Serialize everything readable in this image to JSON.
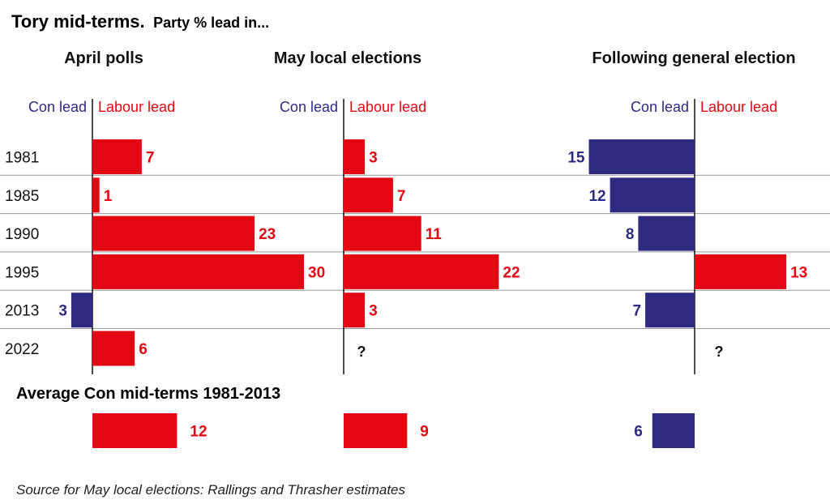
{
  "colors": {
    "labour": "#e30613",
    "con": "#2e2a80",
    "text": "#111111",
    "rule": "#999999"
  },
  "header": {
    "title": "Tory mid-terms.",
    "subtitle": "Party % lead in..."
  },
  "avg_title": "Average Con mid-terms 1981-2013",
  "source": "Source for May local elections: Rallings and Thrasher estimates",
  "chart_data": {
    "type": "bar",
    "orientation": "horizontal",
    "title": "Tory mid-terms. Party % lead in...",
    "categories": [
      "1981",
      "1985",
      "1990",
      "1995",
      "2013",
      "2022"
    ],
    "sign_convention": "positive = Labour lead, negative = Con lead",
    "panels": [
      {
        "name": "April polls",
        "left_label": "Con lead",
        "right_label": "Labour lead",
        "values": [
          7,
          1,
          23,
          30,
          -3,
          6
        ],
        "labels": [
          "7",
          "1",
          "23",
          "30",
          "3",
          "6"
        ],
        "average": 12,
        "average_label": "12"
      },
      {
        "name": "May local elections",
        "left_label": "Con lead",
        "right_label": "Labour lead",
        "values": [
          3,
          7,
          11,
          22,
          3,
          null
        ],
        "labels": [
          "3",
          "7",
          "11",
          "22",
          "3",
          "?"
        ],
        "average": 9,
        "average_label": "9"
      },
      {
        "name": "Following general election",
        "left_label": "Con lead",
        "right_label": "Labour lead",
        "values": [
          -15,
          -12,
          -8,
          13,
          -7,
          null
        ],
        "labels": [
          "15",
          "12",
          "8",
          "13",
          "7",
          "?"
        ],
        "average": -6,
        "average_label": "6"
      }
    ]
  }
}
